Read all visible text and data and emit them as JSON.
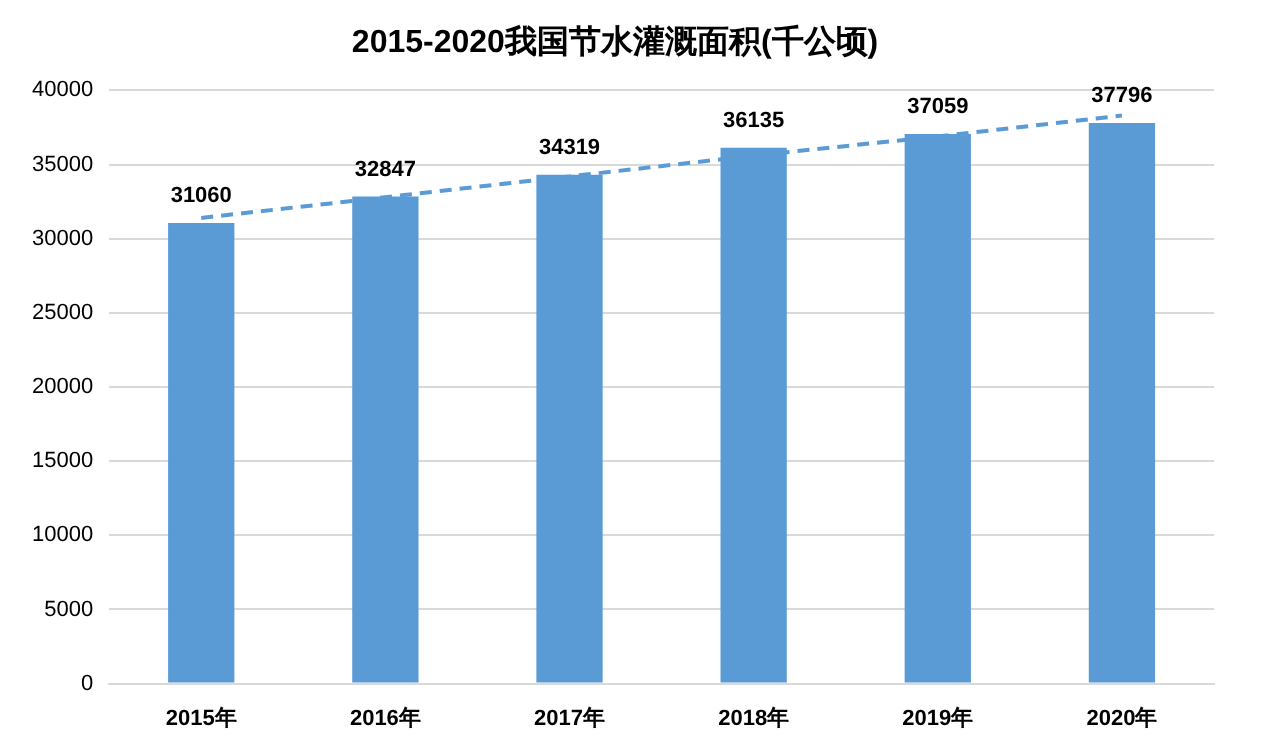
{
  "chart_data": {
    "type": "bar",
    "title": "2015-2020我国节水灌溉面积(千公顷)",
    "categories": [
      "2015年",
      "2016年",
      "2017年",
      "2018年",
      "2019年",
      "2020年"
    ],
    "series": [
      {
        "color": "#5b9bd5",
        "values": [
          31060,
          32847,
          34319,
          36135,
          37059,
          37796
        ],
        "value_labels": [
          "31060",
          "32847",
          "34319",
          "36135",
          "37059",
          "37796"
        ]
      },
      {
        "type": "line",
        "color": "#5b9bd5",
        "line_style": "dashed",
        "marker": "none",
        "values": [
          31400,
          32800,
          34200,
          35600,
          36900,
          38300
        ]
      }
    ],
    "ylim": [
      0,
      40000
    ],
    "yticks": [
      0,
      5000,
      10000,
      15000,
      20000,
      25000,
      30000,
      35000,
      40000
    ],
    "grid": "y",
    "legend": false
  }
}
